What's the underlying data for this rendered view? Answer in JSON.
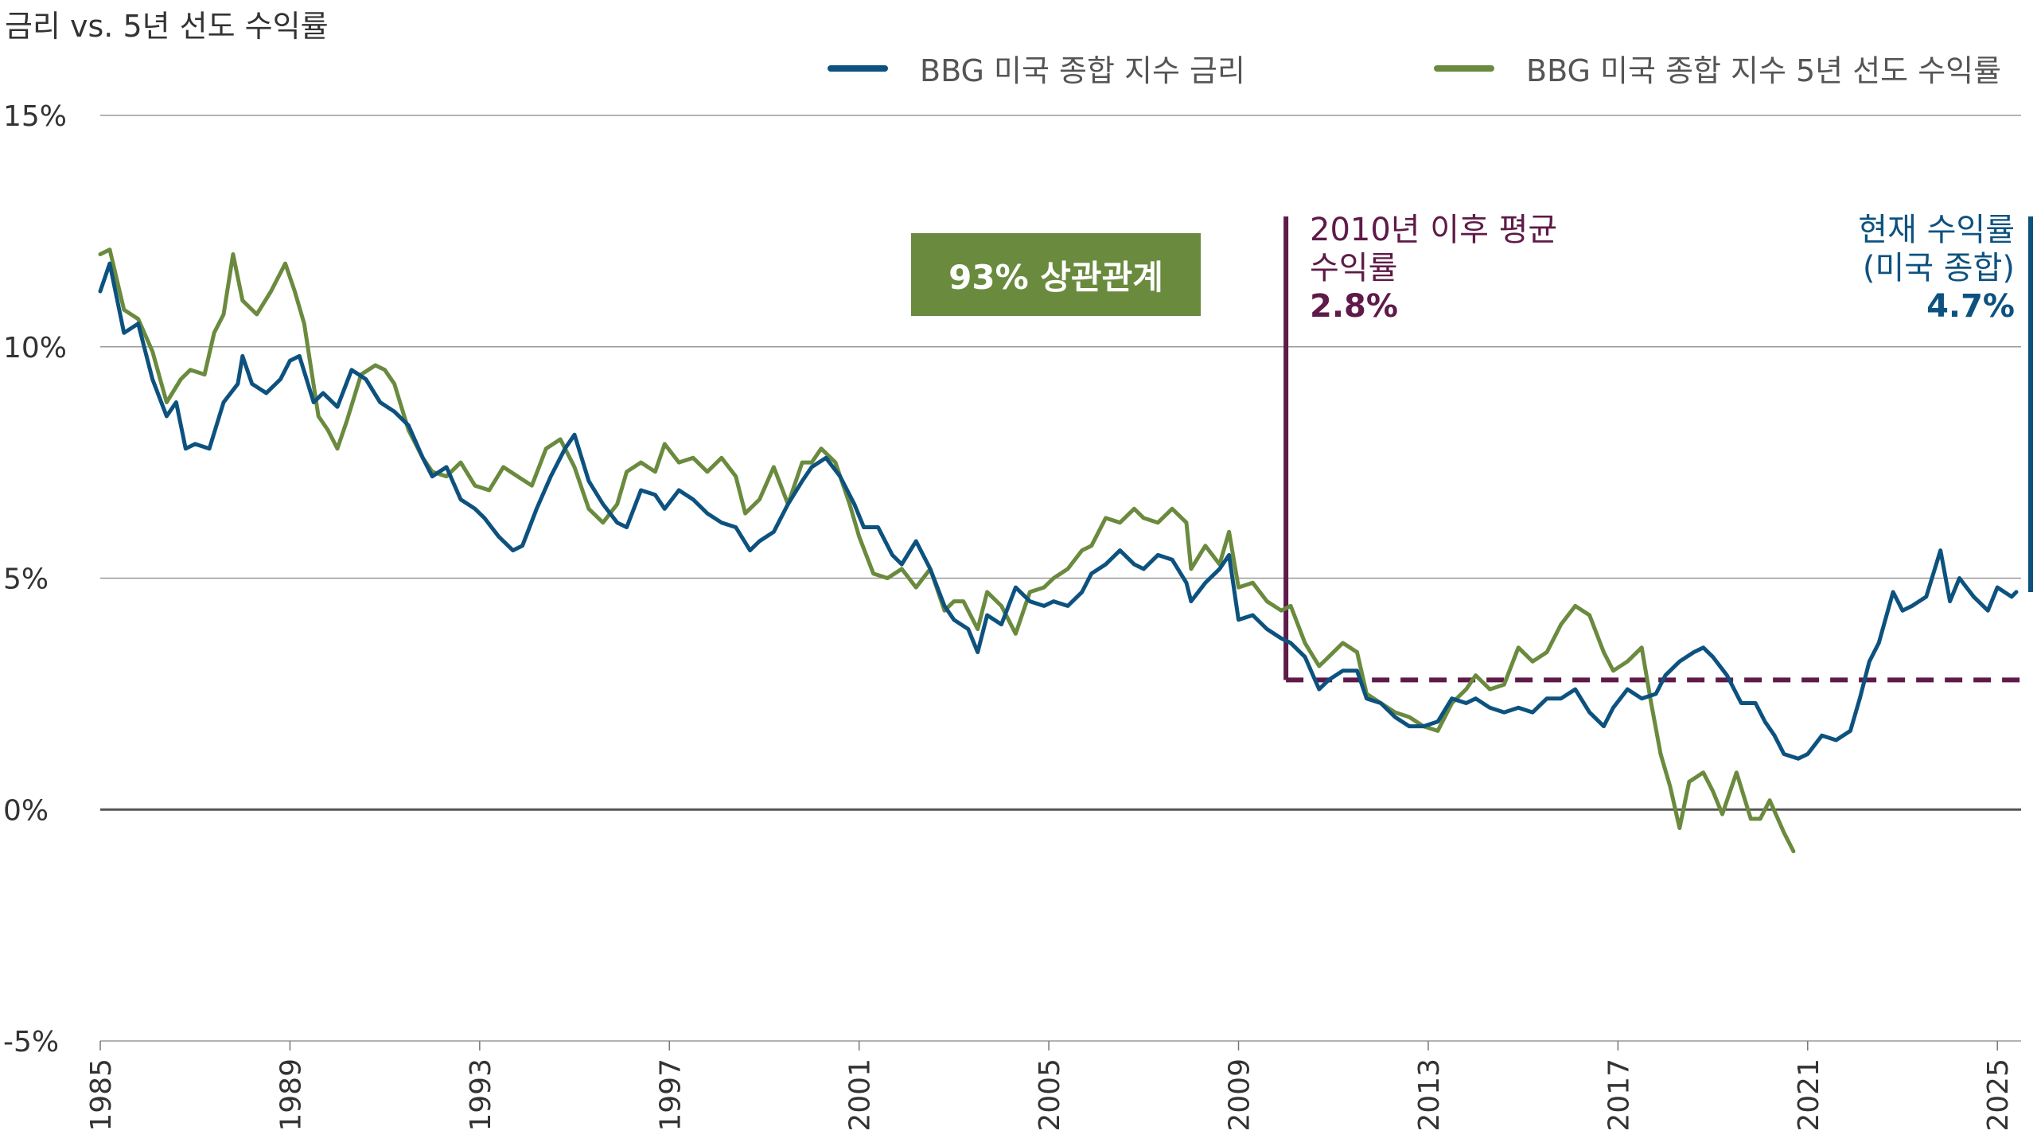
{
  "title": "금리 vs. 5년 선도 수익률",
  "legend": [
    {
      "label": "BBG 미국 종합 지수 금리",
      "color": "#0d527f"
    },
    {
      "label": "BBG 미국 종합 지수 5년 선도 수익률",
      "color": "#6a8a3e"
    }
  ],
  "correlation_label": "93% 상관관계",
  "annotation_avg": {
    "line1": "2010년 이후 평균",
    "line2": "수익률",
    "value": "2.8%",
    "color": "#5e1a48"
  },
  "annotation_current": {
    "line1": "현재 수익률",
    "line2": "(미국 종합)",
    "value": "4.7%",
    "color": "#0d527f"
  },
  "chart_data": {
    "type": "line",
    "title": "금리 vs. 5년 선도 수익률",
    "xlim": [
      1985,
      2025.5
    ],
    "ylim": [
      -5,
      15
    ],
    "x_ticks": [
      "1985",
      "1989",
      "1993",
      "1997",
      "2001",
      "2005",
      "2009",
      "2013",
      "2017",
      "2021",
      "2025"
    ],
    "y_ticks": [
      {
        "value": 15,
        "label": "15%"
      },
      {
        "value": 10,
        "label": "10%"
      },
      {
        "value": 5,
        "label": "5%"
      },
      {
        "value": 0,
        "label": "0%"
      },
      {
        "value": -5,
        "label": "-5%"
      }
    ],
    "grid": true,
    "legend_position": "top-right",
    "reference_lines": [
      {
        "name": "2010년 이후 평균 수익률",
        "value": 2.8,
        "from": 2010,
        "style": "dashed",
        "color": "#5e1a48"
      }
    ],
    "series": [
      {
        "name": "BBG 미국 종합 지수 금리",
        "color": "#0d527f",
        "points": [
          [
            1985.0,
            11.2
          ],
          [
            1985.2,
            11.8
          ],
          [
            1985.5,
            10.3
          ],
          [
            1985.8,
            10.5
          ],
          [
            1986.1,
            9.3
          ],
          [
            1986.4,
            8.5
          ],
          [
            1986.6,
            8.8
          ],
          [
            1986.8,
            7.8
          ],
          [
            1987.0,
            7.9
          ],
          [
            1987.3,
            7.8
          ],
          [
            1987.6,
            8.8
          ],
          [
            1987.9,
            9.2
          ],
          [
            1988.0,
            9.8
          ],
          [
            1988.2,
            9.2
          ],
          [
            1988.5,
            9.0
          ],
          [
            1988.8,
            9.3
          ],
          [
            1989.0,
            9.7
          ],
          [
            1989.2,
            9.8
          ],
          [
            1989.5,
            8.8
          ],
          [
            1989.7,
            9.0
          ],
          [
            1990.0,
            8.7
          ],
          [
            1990.3,
            9.5
          ],
          [
            1990.6,
            9.3
          ],
          [
            1990.9,
            8.8
          ],
          [
            1991.2,
            8.6
          ],
          [
            1991.5,
            8.3
          ],
          [
            1991.8,
            7.6
          ],
          [
            1992.0,
            7.2
          ],
          [
            1992.3,
            7.4
          ],
          [
            1992.6,
            6.7
          ],
          [
            1992.9,
            6.5
          ],
          [
            1993.1,
            6.3
          ],
          [
            1993.4,
            5.9
          ],
          [
            1993.7,
            5.6
          ],
          [
            1993.9,
            5.7
          ],
          [
            1994.2,
            6.5
          ],
          [
            1994.5,
            7.2
          ],
          [
            1994.8,
            7.8
          ],
          [
            1995.0,
            8.1
          ],
          [
            1995.3,
            7.1
          ],
          [
            1995.6,
            6.6
          ],
          [
            1995.9,
            6.2
          ],
          [
            1996.1,
            6.1
          ],
          [
            1996.4,
            6.9
          ],
          [
            1996.7,
            6.8
          ],
          [
            1996.9,
            6.5
          ],
          [
            1997.2,
            6.9
          ],
          [
            1997.5,
            6.7
          ],
          [
            1997.8,
            6.4
          ],
          [
            1998.1,
            6.2
          ],
          [
            1998.4,
            6.1
          ],
          [
            1998.7,
            5.6
          ],
          [
            1998.9,
            5.8
          ],
          [
            1999.2,
            6.0
          ],
          [
            1999.5,
            6.6
          ],
          [
            1999.8,
            7.1
          ],
          [
            2000.0,
            7.4
          ],
          [
            2000.3,
            7.6
          ],
          [
            2000.6,
            7.2
          ],
          [
            2000.9,
            6.6
          ],
          [
            2001.1,
            6.1
          ],
          [
            2001.4,
            6.1
          ],
          [
            2001.7,
            5.5
          ],
          [
            2001.9,
            5.3
          ],
          [
            2002.2,
            5.8
          ],
          [
            2002.5,
            5.2
          ],
          [
            2002.8,
            4.4
          ],
          [
            2003.0,
            4.1
          ],
          [
            2003.3,
            3.9
          ],
          [
            2003.5,
            3.4
          ],
          [
            2003.7,
            4.2
          ],
          [
            2004.0,
            4.0
          ],
          [
            2004.3,
            4.8
          ],
          [
            2004.6,
            4.5
          ],
          [
            2004.9,
            4.4
          ],
          [
            2005.1,
            4.5
          ],
          [
            2005.4,
            4.4
          ],
          [
            2005.7,
            4.7
          ],
          [
            2005.9,
            5.1
          ],
          [
            2006.2,
            5.3
          ],
          [
            2006.5,
            5.6
          ],
          [
            2006.8,
            5.3
          ],
          [
            2007.0,
            5.2
          ],
          [
            2007.3,
            5.5
          ],
          [
            2007.6,
            5.4
          ],
          [
            2007.9,
            4.9
          ],
          [
            2008.0,
            4.5
          ],
          [
            2008.3,
            4.9
          ],
          [
            2008.6,
            5.2
          ],
          [
            2008.8,
            5.5
          ],
          [
            2009.0,
            4.1
          ],
          [
            2009.3,
            4.2
          ],
          [
            2009.6,
            3.9
          ],
          [
            2009.9,
            3.7
          ],
          [
            2010.1,
            3.6
          ],
          [
            2010.4,
            3.3
          ],
          [
            2010.7,
            2.6
          ],
          [
            2010.9,
            2.8
          ],
          [
            2011.2,
            3.0
          ],
          [
            2011.5,
            3.0
          ],
          [
            2011.7,
            2.4
          ],
          [
            2012.0,
            2.3
          ],
          [
            2012.3,
            2.0
          ],
          [
            2012.6,
            1.8
          ],
          [
            2012.9,
            1.8
          ],
          [
            2013.2,
            1.9
          ],
          [
            2013.5,
            2.4
          ],
          [
            2013.8,
            2.3
          ],
          [
            2014.0,
            2.4
          ],
          [
            2014.3,
            2.2
          ],
          [
            2014.6,
            2.1
          ],
          [
            2014.9,
            2.2
          ],
          [
            2015.2,
            2.1
          ],
          [
            2015.5,
            2.4
          ],
          [
            2015.8,
            2.4
          ],
          [
            2016.1,
            2.6
          ],
          [
            2016.4,
            2.1
          ],
          [
            2016.7,
            1.8
          ],
          [
            2016.9,
            2.2
          ],
          [
            2017.2,
            2.6
          ],
          [
            2017.5,
            2.4
          ],
          [
            2017.8,
            2.5
          ],
          [
            2018.0,
            2.9
          ],
          [
            2018.3,
            3.2
          ],
          [
            2018.6,
            3.4
          ],
          [
            2018.8,
            3.5
          ],
          [
            2019.0,
            3.3
          ],
          [
            2019.3,
            2.9
          ],
          [
            2019.6,
            2.3
          ],
          [
            2019.9,
            2.3
          ],
          [
            2020.1,
            1.9
          ],
          [
            2020.3,
            1.6
          ],
          [
            2020.5,
            1.2
          ],
          [
            2020.8,
            1.1
          ],
          [
            2021.0,
            1.2
          ],
          [
            2021.3,
            1.6
          ],
          [
            2021.6,
            1.5
          ],
          [
            2021.9,
            1.7
          ],
          [
            2022.1,
            2.4
          ],
          [
            2022.3,
            3.2
          ],
          [
            2022.5,
            3.6
          ],
          [
            2022.8,
            4.7
          ],
          [
            2023.0,
            4.3
          ],
          [
            2023.2,
            4.4
          ],
          [
            2023.5,
            4.6
          ],
          [
            2023.8,
            5.6
          ],
          [
            2024.0,
            4.5
          ],
          [
            2024.2,
            5.0
          ],
          [
            2024.5,
            4.6
          ],
          [
            2024.8,
            4.3
          ],
          [
            2025.0,
            4.8
          ],
          [
            2025.3,
            4.6
          ],
          [
            2025.4,
            4.7
          ]
        ]
      },
      {
        "name": "BBG 미국 종합 지수 5년 선도 수익률",
        "color": "#6a8a3e",
        "points": [
          [
            1985.0,
            12.0
          ],
          [
            1985.2,
            12.1
          ],
          [
            1985.5,
            10.8
          ],
          [
            1985.8,
            10.6
          ],
          [
            1986.1,
            9.9
          ],
          [
            1986.4,
            8.8
          ],
          [
            1986.7,
            9.3
          ],
          [
            1986.9,
            9.5
          ],
          [
            1987.2,
            9.4
          ],
          [
            1987.4,
            10.3
          ],
          [
            1987.6,
            10.7
          ],
          [
            1987.8,
            12.0
          ],
          [
            1988.0,
            11.0
          ],
          [
            1988.3,
            10.7
          ],
          [
            1988.6,
            11.2
          ],
          [
            1988.9,
            11.8
          ],
          [
            1989.1,
            11.2
          ],
          [
            1989.3,
            10.5
          ],
          [
            1989.6,
            8.5
          ],
          [
            1989.8,
            8.2
          ],
          [
            1990.0,
            7.8
          ],
          [
            1990.2,
            8.4
          ],
          [
            1990.5,
            9.4
          ],
          [
            1990.8,
            9.6
          ],
          [
            1991.0,
            9.5
          ],
          [
            1991.2,
            9.2
          ],
          [
            1991.5,
            8.2
          ],
          [
            1991.8,
            7.6
          ],
          [
            1992.0,
            7.3
          ],
          [
            1992.3,
            7.2
          ],
          [
            1992.6,
            7.5
          ],
          [
            1992.9,
            7.0
          ],
          [
            1993.2,
            6.9
          ],
          [
            1993.5,
            7.4
          ],
          [
            1993.8,
            7.2
          ],
          [
            1994.1,
            7.0
          ],
          [
            1994.4,
            7.8
          ],
          [
            1994.7,
            8.0
          ],
          [
            1995.0,
            7.4
          ],
          [
            1995.3,
            6.5
          ],
          [
            1995.6,
            6.2
          ],
          [
            1995.9,
            6.6
          ],
          [
            1996.1,
            7.3
          ],
          [
            1996.4,
            7.5
          ],
          [
            1996.7,
            7.3
          ],
          [
            1996.9,
            7.9
          ],
          [
            1997.2,
            7.5
          ],
          [
            1997.5,
            7.6
          ],
          [
            1997.8,
            7.3
          ],
          [
            1998.1,
            7.6
          ],
          [
            1998.4,
            7.2
          ],
          [
            1998.6,
            6.4
          ],
          [
            1998.9,
            6.7
          ],
          [
            1999.2,
            7.4
          ],
          [
            1999.5,
            6.6
          ],
          [
            1999.8,
            7.5
          ],
          [
            2000.0,
            7.5
          ],
          [
            2000.2,
            7.8
          ],
          [
            2000.5,
            7.5
          ],
          [
            2000.8,
            6.6
          ],
          [
            2001.0,
            5.9
          ],
          [
            2001.3,
            5.1
          ],
          [
            2001.6,
            5.0
          ],
          [
            2001.9,
            5.2
          ],
          [
            2002.2,
            4.8
          ],
          [
            2002.5,
            5.2
          ],
          [
            2002.8,
            4.3
          ],
          [
            2003.0,
            4.5
          ],
          [
            2003.2,
            4.5
          ],
          [
            2003.5,
            3.9
          ],
          [
            2003.7,
            4.7
          ],
          [
            2004.0,
            4.4
          ],
          [
            2004.3,
            3.8
          ],
          [
            2004.6,
            4.7
          ],
          [
            2004.9,
            4.8
          ],
          [
            2005.1,
            5.0
          ],
          [
            2005.4,
            5.2
          ],
          [
            2005.7,
            5.6
          ],
          [
            2005.9,
            5.7
          ],
          [
            2006.2,
            6.3
          ],
          [
            2006.5,
            6.2
          ],
          [
            2006.8,
            6.5
          ],
          [
            2007.0,
            6.3
          ],
          [
            2007.3,
            6.2
          ],
          [
            2007.6,
            6.5
          ],
          [
            2007.9,
            6.2
          ],
          [
            2008.0,
            5.2
          ],
          [
            2008.3,
            5.7
          ],
          [
            2008.6,
            5.3
          ],
          [
            2008.8,
            6.0
          ],
          [
            2009.0,
            4.8
          ],
          [
            2009.3,
            4.9
          ],
          [
            2009.6,
            4.5
          ],
          [
            2009.9,
            4.3
          ],
          [
            2010.1,
            4.4
          ],
          [
            2010.4,
            3.6
          ],
          [
            2010.7,
            3.1
          ],
          [
            2010.9,
            3.3
          ],
          [
            2011.2,
            3.6
          ],
          [
            2011.5,
            3.4
          ],
          [
            2011.7,
            2.5
          ],
          [
            2012.0,
            2.3
          ],
          [
            2012.3,
            2.1
          ],
          [
            2012.6,
            2.0
          ],
          [
            2012.9,
            1.8
          ],
          [
            2013.2,
            1.7
          ],
          [
            2013.5,
            2.3
          ],
          [
            2013.8,
            2.6
          ],
          [
            2014.0,
            2.9
          ],
          [
            2014.3,
            2.6
          ],
          [
            2014.6,
            2.7
          ],
          [
            2014.9,
            3.5
          ],
          [
            2015.2,
            3.2
          ],
          [
            2015.5,
            3.4
          ],
          [
            2015.8,
            4.0
          ],
          [
            2016.1,
            4.4
          ],
          [
            2016.4,
            4.2
          ],
          [
            2016.7,
            3.4
          ],
          [
            2016.9,
            3.0
          ],
          [
            2017.2,
            3.2
          ],
          [
            2017.5,
            3.5
          ],
          [
            2017.7,
            2.3
          ],
          [
            2017.9,
            1.2
          ],
          [
            2018.1,
            0.5
          ],
          [
            2018.3,
            -0.4
          ],
          [
            2018.5,
            0.6
          ],
          [
            2018.8,
            0.8
          ],
          [
            2019.0,
            0.4
          ],
          [
            2019.2,
            -0.1
          ],
          [
            2019.5,
            0.8
          ],
          [
            2019.8,
            -0.2
          ],
          [
            2020.0,
            -0.2
          ],
          [
            2020.2,
            0.2
          ],
          [
            2020.5,
            -0.5
          ],
          [
            2020.7,
            -0.9
          ]
        ]
      }
    ]
  }
}
